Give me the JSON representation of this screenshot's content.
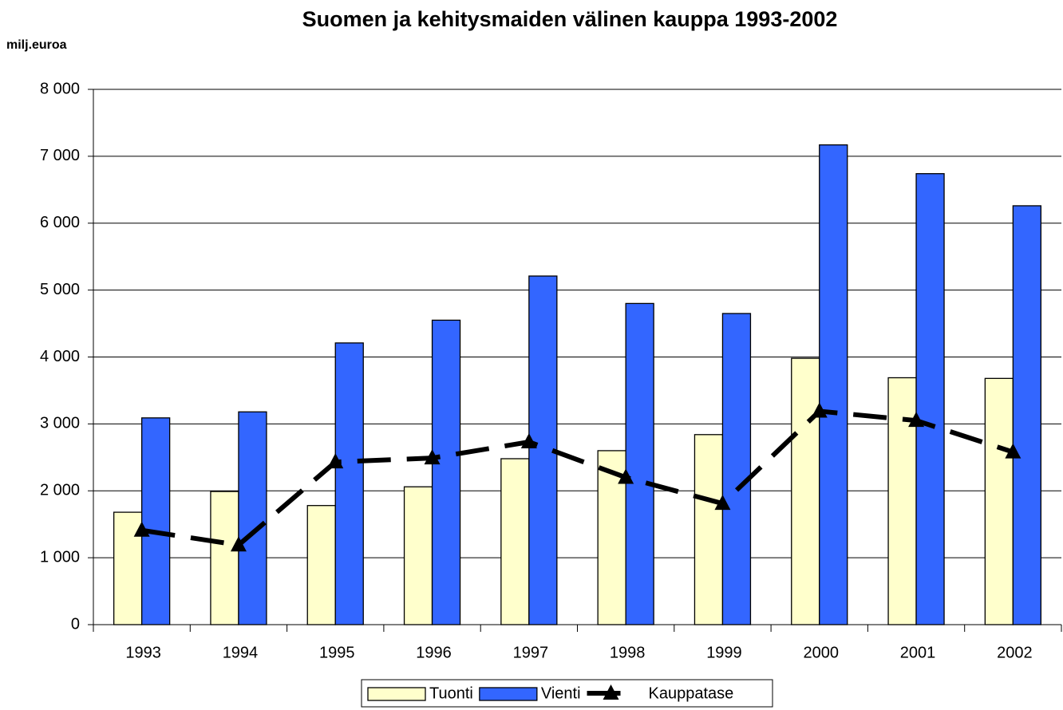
{
  "chart_data": {
    "type": "bar",
    "title": "Suomen ja kehitysmaiden välinen kauppa 1993-2002",
    "y_label": "milj.euroa",
    "categories": [
      "1993",
      "1994",
      "1995",
      "1996",
      "1997",
      "1998",
      "1999",
      "2000",
      "2001",
      "2002"
    ],
    "series": [
      {
        "name": "Tuonti",
        "type": "bar",
        "color": "#ffffcc",
        "values": [
          1680,
          1990,
          1780,
          2060,
          2480,
          2600,
          2840,
          3980,
          3690,
          3680
        ]
      },
      {
        "name": "Vienti",
        "type": "bar",
        "color": "#3366ff",
        "values": [
          3090,
          3180,
          4210,
          4550,
          5210,
          4800,
          4650,
          7170,
          6740,
          6260
        ]
      },
      {
        "name": "Kauppatase",
        "type": "line",
        "color": "#000000",
        "values": [
          1410,
          1190,
          2430,
          2490,
          2730,
          2200,
          1810,
          3190,
          3050,
          2580
        ]
      }
    ],
    "ylim": [
      0,
      8000
    ],
    "yticks": [
      0,
      {
        "value": 1000,
        "label": "1 000"
      },
      {
        "value": 2000,
        "label": "2 000"
      },
      {
        "value": 3000,
        "label": "3 000"
      },
      {
        "value": 4000,
        "label": "4 000"
      },
      {
        "value": 5000,
        "label": "5 000"
      },
      {
        "value": 6000,
        "label": "6 000"
      },
      {
        "value": 7000,
        "label": "7 000"
      },
      {
        "value": 8000,
        "label": "8 000"
      }
    ],
    "grid": true,
    "legend": "bottom"
  }
}
